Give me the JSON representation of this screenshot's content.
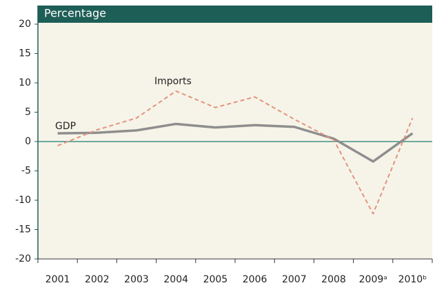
{
  "chart_data": {
    "type": "line",
    "title": "Percentage",
    "categories": [
      "2001",
      "2002",
      "2003",
      "2004",
      "2005",
      "2006",
      "2007",
      "2008",
      "2009ᵃ",
      "2010ᵇ"
    ],
    "series": [
      {
        "name": "GDP",
        "color": "#8e8e8e",
        "style": "solid",
        "values": [
          1.4,
          1.5,
          1.9,
          3.0,
          2.4,
          2.8,
          2.5,
          0.5,
          -3.4,
          1.4
        ]
      },
      {
        "name": "Imports",
        "color": "#e3937f",
        "style": "dashed",
        "values": [
          -0.7,
          2.0,
          4.0,
          8.6,
          5.8,
          7.6,
          3.8,
          0.3,
          -12.3,
          4.0
        ]
      }
    ],
    "ylim": [
      -20,
      20
    ],
    "yticks": [
      -20,
      -15,
      -10,
      -5,
      0,
      5,
      10,
      15,
      20
    ]
  }
}
